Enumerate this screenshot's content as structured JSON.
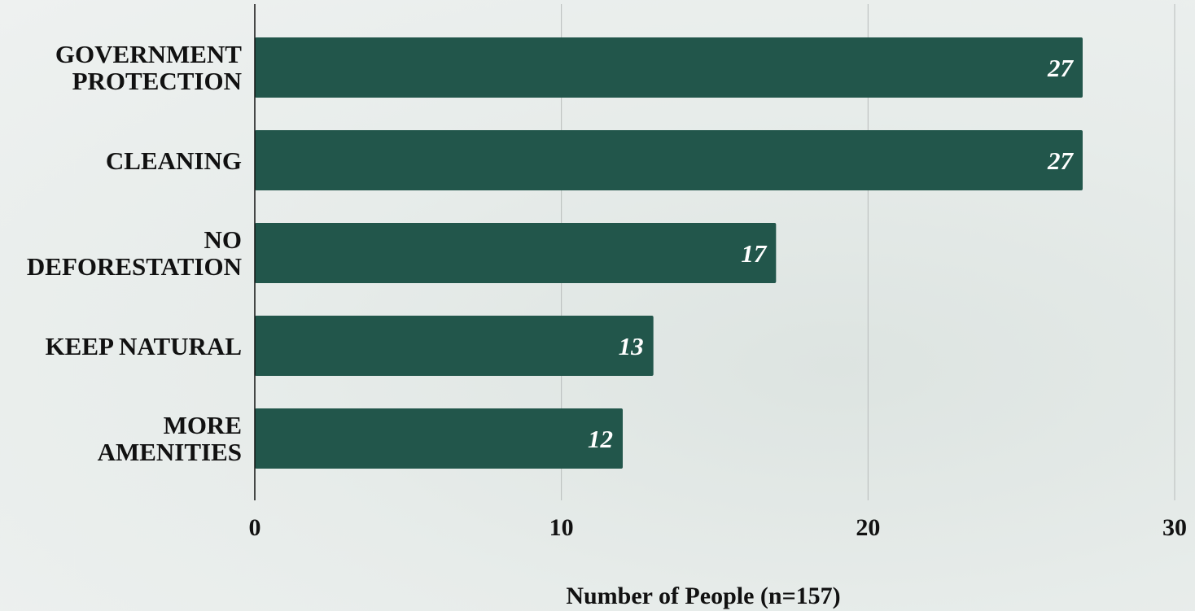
{
  "chart_data": {
    "type": "hbar",
    "categories": [
      "GOVERNMENT\nPROTECTION",
      "CLEANING",
      "NO\nDEFORESTATION",
      "KEEP NATURAL",
      "MORE\nAMENITIES"
    ],
    "values": [
      27,
      27,
      17,
      13,
      12
    ],
    "color": "#22564b",
    "xlabel": "Number of People (n=157)",
    "xlim": [
      0,
      30
    ],
    "xticks": [
      0,
      10,
      20,
      30
    ],
    "grid": true
  }
}
